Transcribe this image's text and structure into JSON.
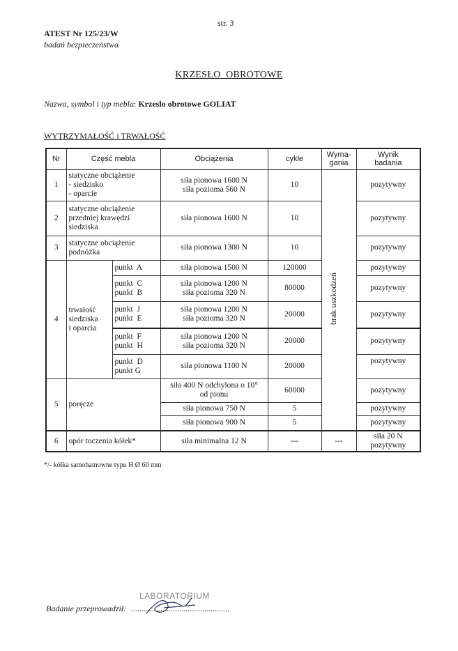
{
  "header": {
    "page": "str. 3",
    "atest": "ATEST Nr 125/23/W",
    "subtitle": "badań bezpieczeństwa"
  },
  "title": "KRZESŁO  OBROTOWE",
  "product": {
    "label": "Nazwa, symbol i typ mebla",
    "value": "Krzeslo obrotowe GOLIAT"
  },
  "section": "WYTRZYMAŁOŚĆ i TRWAŁOŚĆ",
  "table": {
    "headers": {
      "nr": "Nr",
      "part": "Część mebla",
      "load": "Obciążenia",
      "cycles": "cykle",
      "req": "Wyma-gania",
      "result": "Wynik badania"
    },
    "requirement": "brak uszkodzeń",
    "rows": [
      {
        "nr": "1",
        "part": "statyczne obciążenie\n- siedzisko\n- oparcie",
        "load": "siła pionowa 1600 N\nsiła pozioma 560 N",
        "cycles": "10",
        "result": "pozytywny"
      },
      {
        "nr": "2",
        "part": "statyczne obciążenie\nprzedniej  krawędzi\nsiedziska",
        "load": "siła pionowa 1600 N",
        "cycles": "10",
        "result": "pozytywny"
      },
      {
        "nr": "3",
        "part": "statyczne obciążenie\npodnóżka",
        "load": "siła pionowa 1300 N",
        "cycles": "10",
        "result": "pozytywny"
      },
      {
        "nr": "4",
        "part": "trwałość\nsiedziska\ni oparcia",
        "sub": [
          {
            "point": "punkt  A",
            "load": "siła pionowa 1500 N",
            "cycles": "120000",
            "result": "pozytywny"
          },
          {
            "point": "punkt  C\npunkt  B",
            "load": "siła pionowa 1200 N\nsiła pozioma 320 N",
            "cycles": "80000",
            "result": "pozytywny"
          },
          {
            "point": "punkt  J\npunkt  E",
            "load": "siła pionowa 1200 N\nsiła pozioma 320 N",
            "cycles": "20000",
            "result": "pozytywny"
          },
          {
            "point": "punkt  F\npunkt  H",
            "load": "siła pionowa 1200 N\nsiła pozioma 320 N",
            "cycles": "20000",
            "result": "pozytywny"
          },
          {
            "point": "punkt  D\npunkt G",
            "load": "siła pionowa 1100 N",
            "cycles": "20000",
            "result": "pozytywny"
          }
        ]
      },
      {
        "nr": "5",
        "part": "poręcze",
        "sub": [
          {
            "load": "siła 400 N odchylona o 10°\nod pionu",
            "cycles": "60000",
            "result": "pozytywny"
          },
          {
            "load": "siła pionowa 750 N",
            "cycles": "5",
            "result": "pozytywny"
          },
          {
            "load": "siła pionowa 900 N",
            "cycles": "5",
            "result": "pozytywny"
          }
        ]
      },
      {
        "nr": "6",
        "part": "opór toczenia kółek*",
        "load": "siła minimalna 12 N",
        "cycles": "---",
        "req": "---",
        "result": "siła 20 N\npozytywny"
      }
    ]
  },
  "footnote": "*/- kółka samohamowne typu H Ø 60 mm",
  "signature": {
    "label": "Badanie przeprowadził:",
    "dots": "...............................................",
    "stamp": "LABORATORIUM"
  }
}
